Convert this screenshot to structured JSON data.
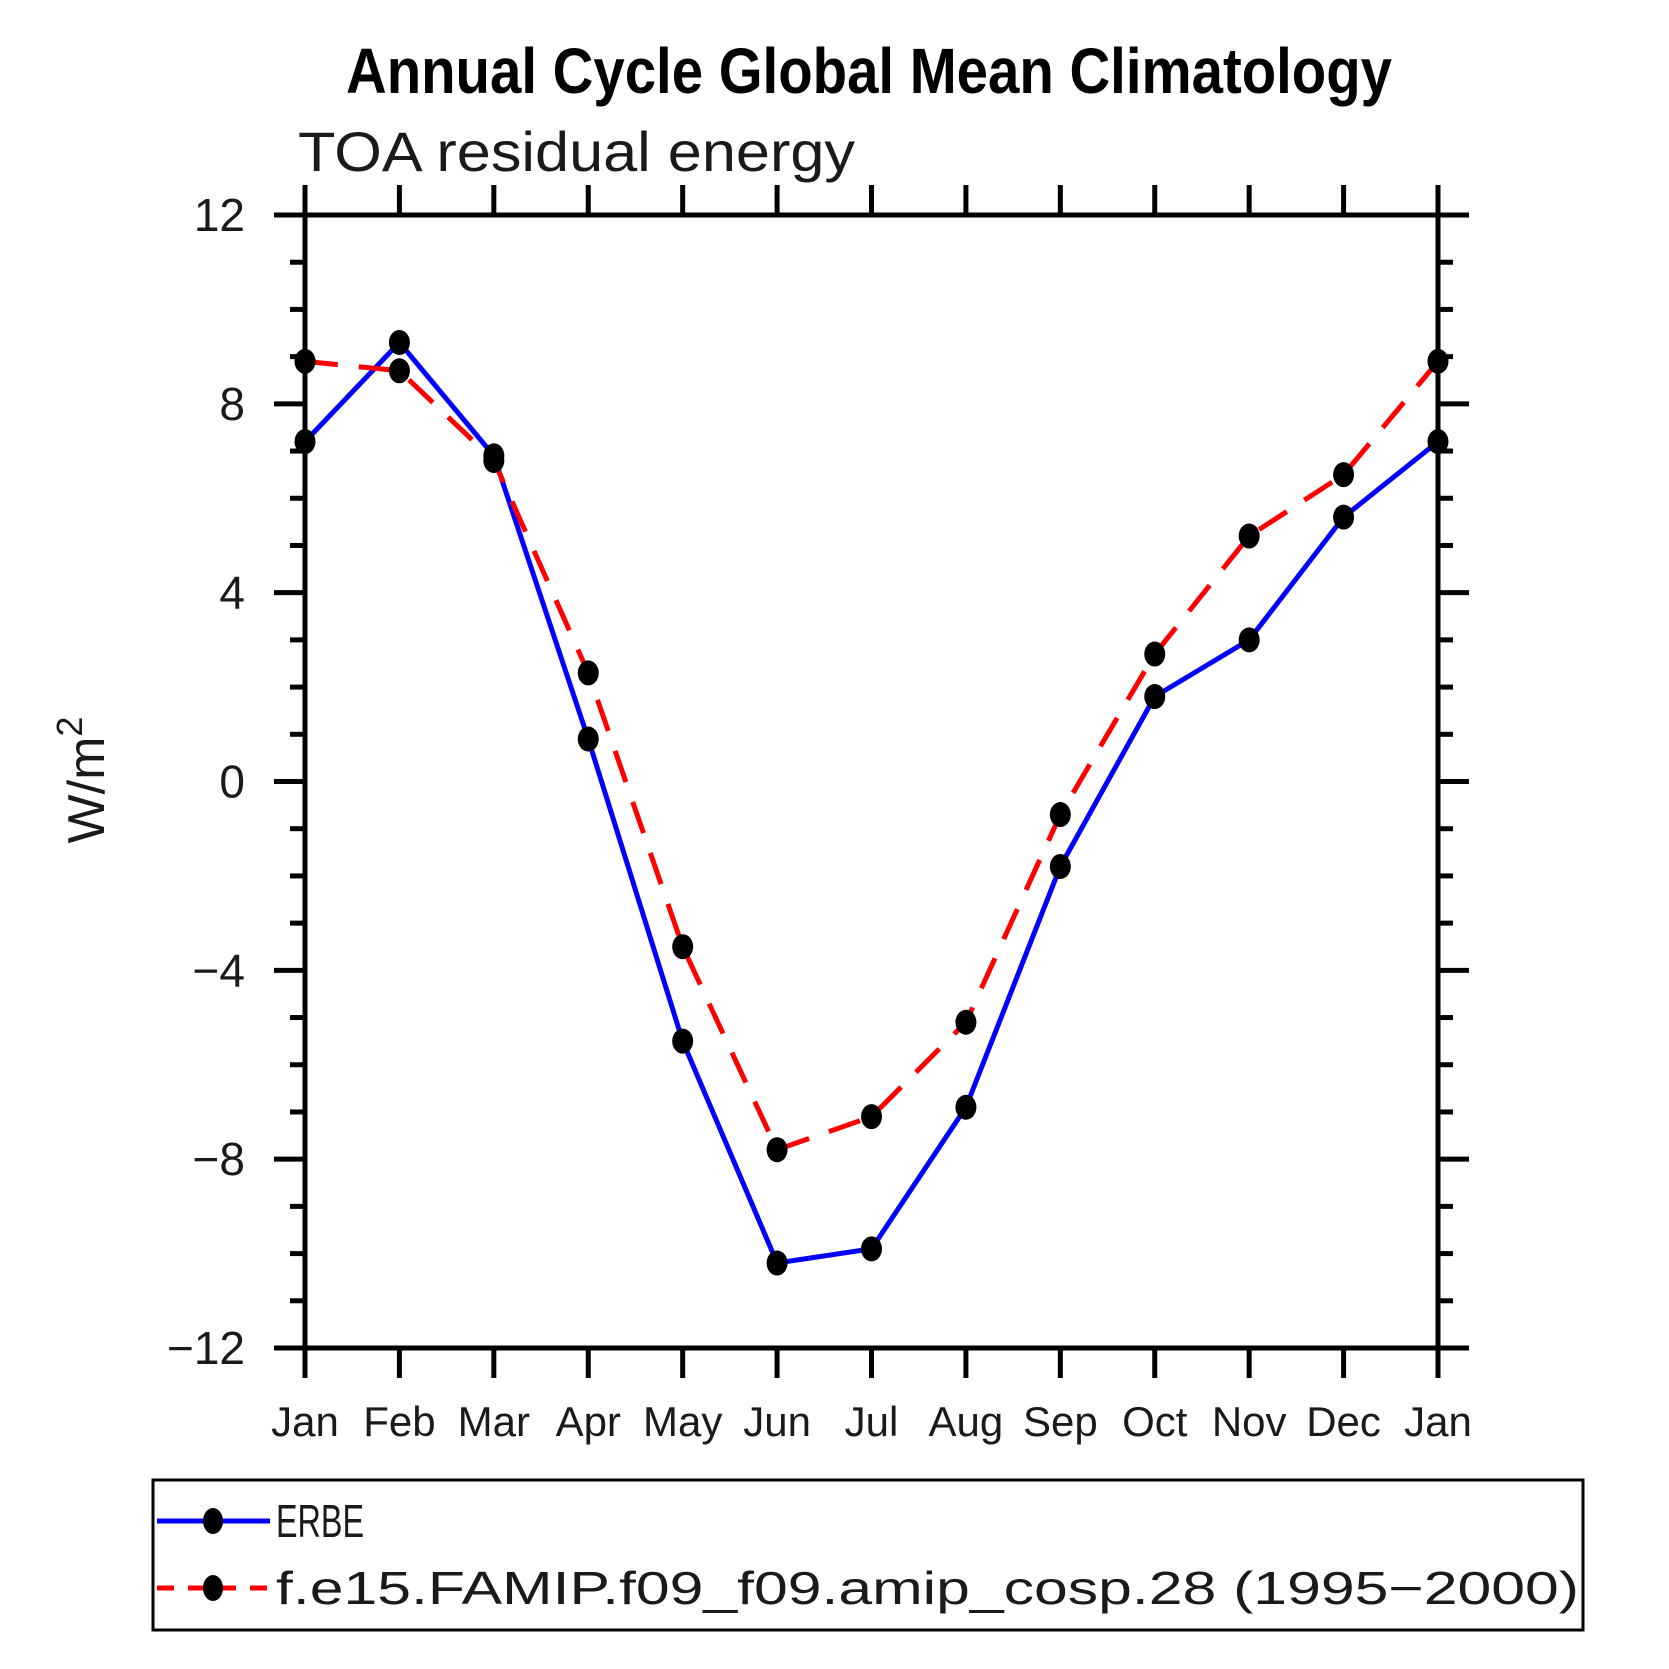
{
  "title": "Annual Cycle Global Mean Climatology",
  "chart_data": {
    "type": "line",
    "title": "Annual Cycle Global Mean Climatology",
    "subtitle": "TOA residual energy",
    "ylabel": "W/m^2",
    "ylabel_base": "W/m",
    "ylabel_exponent": "2",
    "categories": [
      "Jan",
      "Feb",
      "Mar",
      "Apr",
      "May",
      "Jun",
      "Jul",
      "Aug",
      "Sep",
      "Oct",
      "Nov",
      "Dec",
      "Jan"
    ],
    "ylim": [
      -12,
      12
    ],
    "ytick_major_step": 4,
    "ytick_minor_step": 1,
    "grid": false,
    "legend_position": "bottom",
    "marker": {
      "shape": "circle",
      "color": "#000000"
    },
    "series": [
      {
        "name": "ERBE",
        "color": "#0000ff",
        "style": "solid",
        "values": [
          7.2,
          9.3,
          6.9,
          0.9,
          -5.5,
          -10.2,
          -9.9,
          -6.9,
          -1.8,
          1.8,
          3.0,
          5.6,
          7.2
        ]
      },
      {
        "name": "f.e15.FAMIP.f09_f09.amip_cosp.28 (1995−2000)",
        "color": "#ff0000",
        "style": "dashed",
        "values": [
          8.9,
          8.7,
          6.8,
          2.3,
          -3.5,
          -7.8,
          -7.1,
          -5.1,
          -0.7,
          2.7,
          5.2,
          6.5,
          8.9
        ]
      }
    ]
  }
}
